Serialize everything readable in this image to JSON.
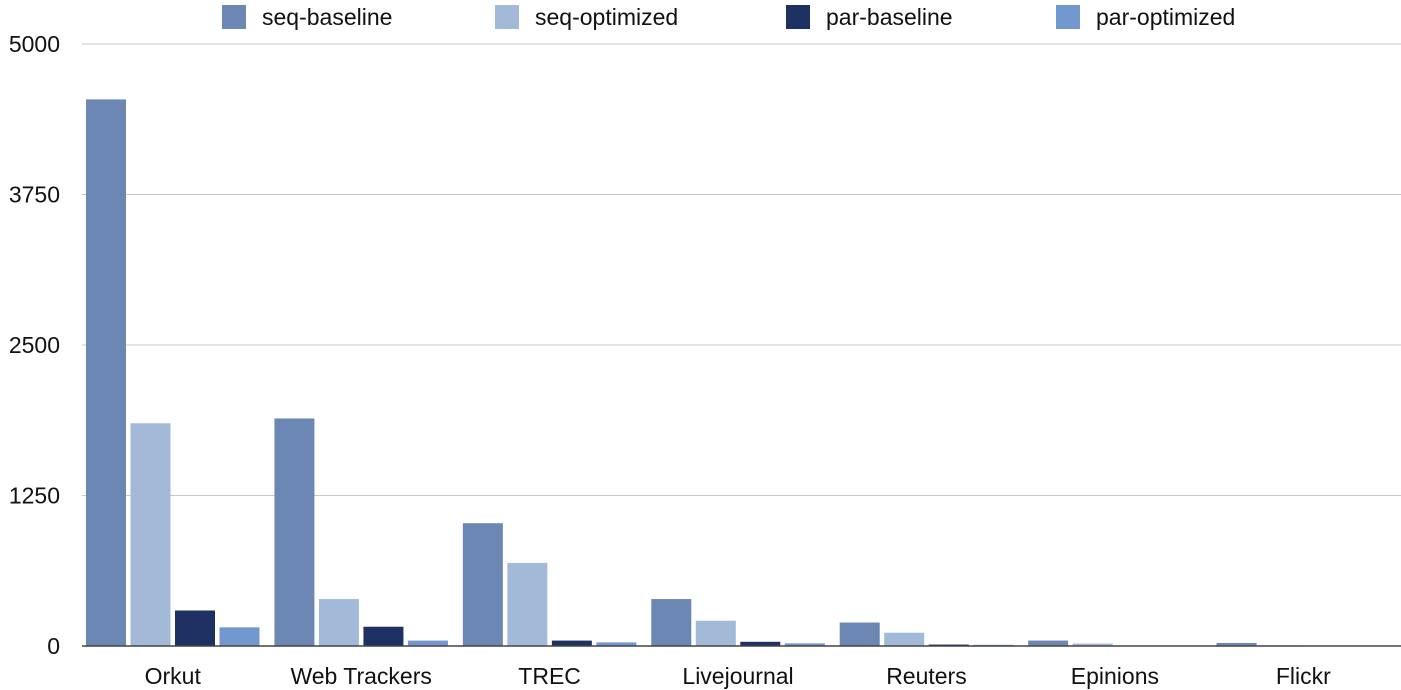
{
  "chart_data": {
    "type": "bar",
    "title": "",
    "xlabel": "",
    "ylabel": "",
    "ylim": [
      0,
      5000
    ],
    "yticks": [
      0,
      1250,
      2500,
      3750,
      5000
    ],
    "yticks_text": [
      "0",
      "1250",
      "2500",
      "3750",
      "5000"
    ],
    "grid": true,
    "legend_position": "top-center",
    "categories": [
      "Orkut",
      "Web Trackers",
      "TREC",
      "Livejournal",
      "Reuters",
      "Epinions",
      "Flickr"
    ],
    "series": [
      {
        "name": "seq-baseline",
        "color": "#6d87b5",
        "values": [
          4540,
          1890,
          1020,
          390,
          195,
          45,
          25
        ]
      },
      {
        "name": "seq-optimized",
        "color": "#a2bad8",
        "values": [
          1850,
          390,
          690,
          210,
          110,
          20,
          5
        ]
      },
      {
        "name": "par-baseline",
        "color": "#1d3163",
        "values": [
          295,
          160,
          45,
          35,
          12,
          4,
          2
        ]
      },
      {
        "name": "par-optimized",
        "color": "#7298cf",
        "values": [
          155,
          45,
          30,
          22,
          10,
          3,
          1
        ]
      }
    ]
  }
}
